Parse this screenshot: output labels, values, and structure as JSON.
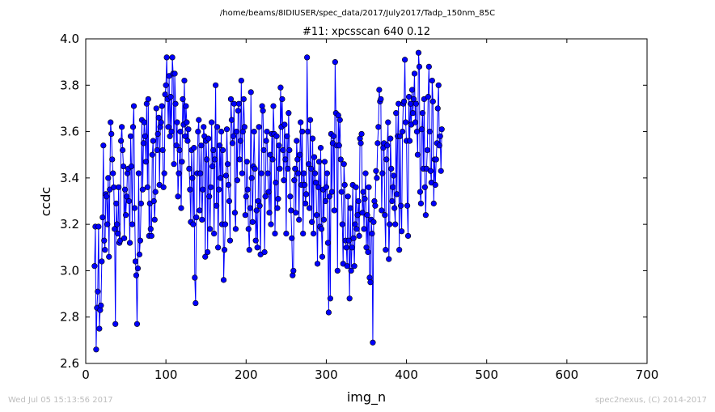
{
  "page": {
    "file_path": "/home/beams/8IDIUSER/spec_data/2017/July2017/Tadp_150nm_85C",
    "timestamp": "Wed Jul 05 15:13:56 2017",
    "credit": "spec2nexus, (C) 2014-2017"
  },
  "colors": {
    "series": "#0000ff",
    "axis": "#000000",
    "background": "#ffffff",
    "footer": "#bdbdbd"
  },
  "chart_data": {
    "type": "line",
    "title": "#11: xpcsscan 640 0.12",
    "xlabel": "img_n",
    "ylabel": "ccdc",
    "xlim": [
      0,
      700
    ],
    "ylim": [
      2.6,
      4.0
    ],
    "xticks": [
      0,
      100,
      200,
      300,
      400,
      500,
      600,
      700
    ],
    "yticks": [
      2.6,
      2.8,
      3.0,
      3.2,
      3.4,
      3.6,
      3.8,
      4.0
    ],
    "grid": false,
    "legend": "none",
    "marker": "circle",
    "series": [
      {
        "x_start": 11,
        "x_step": 1,
        "values": [
          3.02,
          3.19,
          2.66,
          2.84,
          2.91,
          3.19,
          2.75,
          2.83,
          2.85,
          3.04,
          3.23,
          3.54,
          3.13,
          3.09,
          3.33,
          3.32,
          3.2,
          3.4,
          3.06,
          3.35,
          3.64,
          3.59,
          3.48,
          3.42,
          3.36,
          3.18,
          2.77,
          3.29,
          3.2,
          3.16,
          3.36,
          3.12,
          3.13,
          3.56,
          3.62,
          3.52,
          3.45,
          3.14,
          3.35,
          3.24,
          3.32,
          3.42,
          3.44,
          3.3,
          3.12,
          3.58,
          3.45,
          3.2,
          3.62,
          3.71,
          3.27,
          3.04,
          2.98,
          2.77,
          3.01,
          3.42,
          3.07,
          3.13,
          3.29,
          3.65,
          3.35,
          3.55,
          3.64,
          3.58,
          3.47,
          3.72,
          3.36,
          3.74,
          3.15,
          3.29,
          3.18,
          3.15,
          3.5,
          3.56,
          3.3,
          3.22,
          3.34,
          3.7,
          3.52,
          3.59,
          3.66,
          3.37,
          3.62,
          3.64,
          3.71,
          3.52,
          3.36,
          3.42,
          3.76,
          3.8,
          3.92,
          3.74,
          3.62,
          3.84,
          3.58,
          3.75,
          3.6,
          3.92,
          3.85,
          3.46,
          3.85,
          3.72,
          3.54,
          3.64,
          3.32,
          3.42,
          3.52,
          3.6,
          3.27,
          3.47,
          3.74,
          3.63,
          3.82,
          3.58,
          3.71,
          3.64,
          3.56,
          3.61,
          3.44,
          3.35,
          3.21,
          3.52,
          3.4,
          3.2,
          3.53,
          2.97,
          2.86,
          3.23,
          3.42,
          3.6,
          3.65,
          3.26,
          3.42,
          3.54,
          3.22,
          3.35,
          3.62,
          3.58,
          3.06,
          3.56,
          3.48,
          3.08,
          3.57,
          3.32,
          3.18,
          3.36,
          3.64,
          3.45,
          3.52,
          3.16,
          3.48,
          3.8,
          3.28,
          3.62,
          3.1,
          3.35,
          3.54,
          3.4,
          3.6,
          3.2,
          3.52,
          2.96,
          3.09,
          3.2,
          3.41,
          3.61,
          3.46,
          3.37,
          3.3,
          3.13,
          3.74,
          3.65,
          3.55,
          3.58,
          3.72,
          3.25,
          3.18,
          3.6,
          3.39,
          3.69,
          3.72,
          3.48,
          3.56,
          3.82,
          3.42,
          3.6,
          3.74,
          3.62,
          3.24,
          3.32,
          3.47,
          3.35,
          3.18,
          3.09,
          3.27,
          3.77,
          3.4,
          3.21,
          3.45,
          3.6,
          3.44,
          3.13,
          3.26,
          3.1,
          3.3,
          3.62,
          3.28,
          3.07,
          3.42,
          3.71,
          3.69,
          3.52,
          3.08,
          3.32,
          3.56,
          3.6,
          3.42,
          3.34,
          3.25,
          3.5,
          3.2,
          3.59,
          3.48,
          3.71,
          3.59,
          3.16,
          3.38,
          3.58,
          3.27,
          3.31,
          3.54,
          3.44,
          3.79,
          3.62,
          3.74,
          3.52,
          3.39,
          3.63,
          3.48,
          3.16,
          3.58,
          3.44,
          3.68,
          3.52,
          3.32,
          3.26,
          3.14,
          2.98,
          3.0,
          3.39,
          3.44,
          3.25,
          3.56,
          3.48,
          3.42,
          3.22,
          3.5,
          3.64,
          3.37,
          3.6,
          3.16,
          3.42,
          3.37,
          3.29,
          3.33,
          3.92,
          3.6,
          3.46,
          3.27,
          3.65,
          3.44,
          3.21,
          3.57,
          3.16,
          3.49,
          3.42,
          3.38,
          3.24,
          3.03,
          3.36,
          3.47,
          3.19,
          3.53,
          3.18,
          3.06,
          3.35,
          3.22,
          3.47,
          3.3,
          3.36,
          3.42,
          3.12,
          2.82,
          3.32,
          2.88,
          3.59,
          3.34,
          3.55,
          3.58,
          3.26,
          3.9,
          3.68,
          3.54,
          3.0,
          3.67,
          3.54,
          3.65,
          3.48,
          3.34,
          3.2,
          3.03,
          3.46,
          3.37,
          3.13,
          3.1,
          3.02,
          3.32,
          3.13,
          2.88,
          3.27,
          3.0,
          3.1,
          3.37,
          3.14,
          3.02,
          3.2,
          3.36,
          3.18,
          3.24,
          3.3,
          3.15,
          3.57,
          3.55,
          3.59,
          3.25,
          3.34,
          3.18,
          3.31,
          3.42,
          3.1,
          3.24,
          3.08,
          3.36,
          2.97,
          2.95,
          3.22,
          3.16,
          2.69,
          3.21,
          3.3,
          3.28,
          3.43,
          3.4,
          3.55,
          3.62,
          3.78,
          3.73,
          3.74,
          3.26,
          3.42,
          3.53,
          3.55,
          3.24,
          3.09,
          3.48,
          3.54,
          3.64,
          3.05,
          3.2,
          3.57,
          3.44,
          3.3,
          3.36,
          3.41,
          3.27,
          3.2,
          3.68,
          3.33,
          3.58,
          3.72,
          3.09,
          3.58,
          3.28,
          3.17,
          3.6,
          3.72,
          3.73,
          3.91,
          3.64,
          3.56,
          3.28,
          3.15,
          3.75,
          3.56,
          3.72,
          3.63,
          3.78,
          3.68,
          3.74,
          3.85,
          3.64,
          3.72,
          3.6,
          3.5,
          3.94,
          3.88,
          3.34,
          3.29,
          3.61,
          3.68,
          3.44,
          3.74,
          3.36,
          3.24,
          3.44,
          3.52,
          3.75,
          3.88,
          3.6,
          3.43,
          3.38,
          3.82,
          3.73,
          3.29,
          3.48,
          3.37,
          3.48,
          3.55,
          3.7,
          3.8,
          3.54,
          3.58,
          3.43,
          3.61
        ]
      }
    ]
  }
}
